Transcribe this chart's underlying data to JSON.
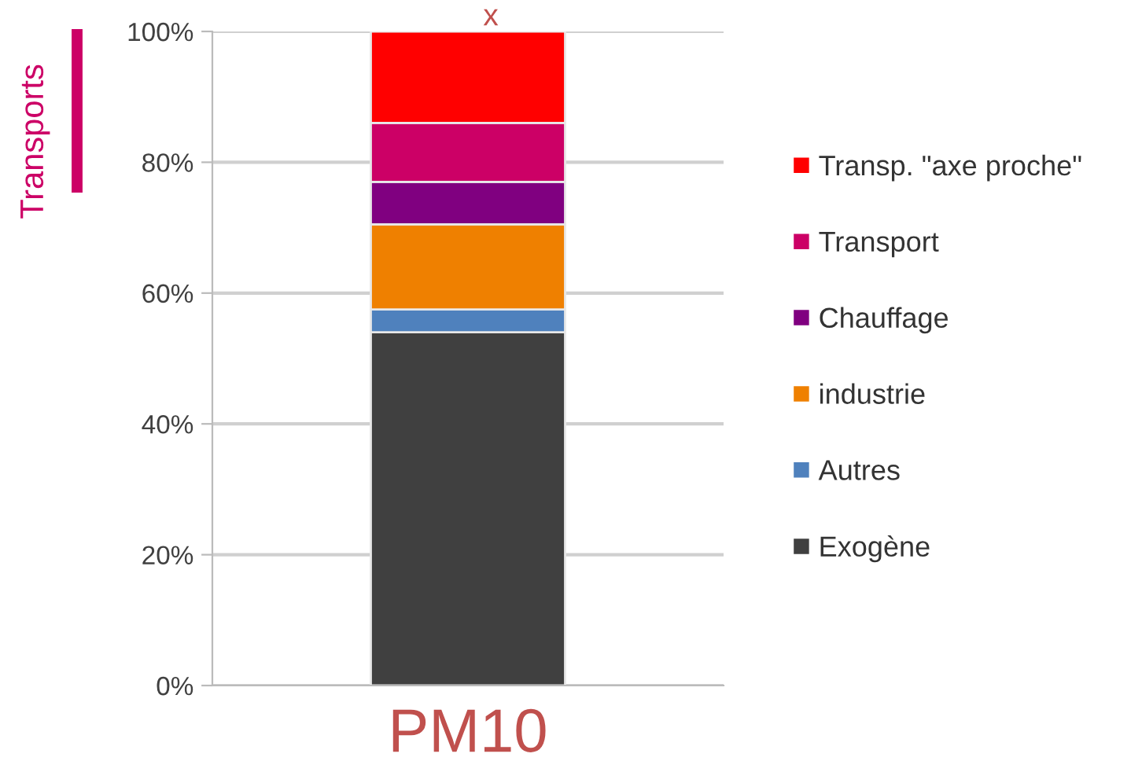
{
  "chart_data": {
    "type": "bar",
    "stacked": true,
    "categories": [
      "PM10"
    ],
    "series": [
      {
        "name": "Exogène",
        "color": "#404040",
        "values": [
          54
        ]
      },
      {
        "name": "Autres",
        "color": "#4f81bd",
        "values": [
          3.5
        ]
      },
      {
        "name": "industrie",
        "color": "#ef8000",
        "values": [
          13
        ]
      },
      {
        "name": "Chauffage",
        "color": "#800080",
        "values": [
          6.5
        ]
      },
      {
        "name": "Transport",
        "color": "#cc0066",
        "values": [
          9
        ]
      },
      {
        "name": "Transp. \"axe proche\"",
        "color": "#ff0000",
        "values": [
          14
        ]
      }
    ],
    "ylim": [
      0,
      100
    ],
    "yticks": [
      {
        "value": 0,
        "label": "0%"
      },
      {
        "value": 20,
        "label": "20%"
      },
      {
        "value": 40,
        "label": "40%"
      },
      {
        "value": 60,
        "label": "60%"
      },
      {
        "value": 80,
        "label": "80%"
      },
      {
        "value": 100,
        "label": "100%"
      }
    ],
    "grid": "y",
    "legend": "right",
    "annotations": [
      "x",
      "Transports"
    ]
  }
}
